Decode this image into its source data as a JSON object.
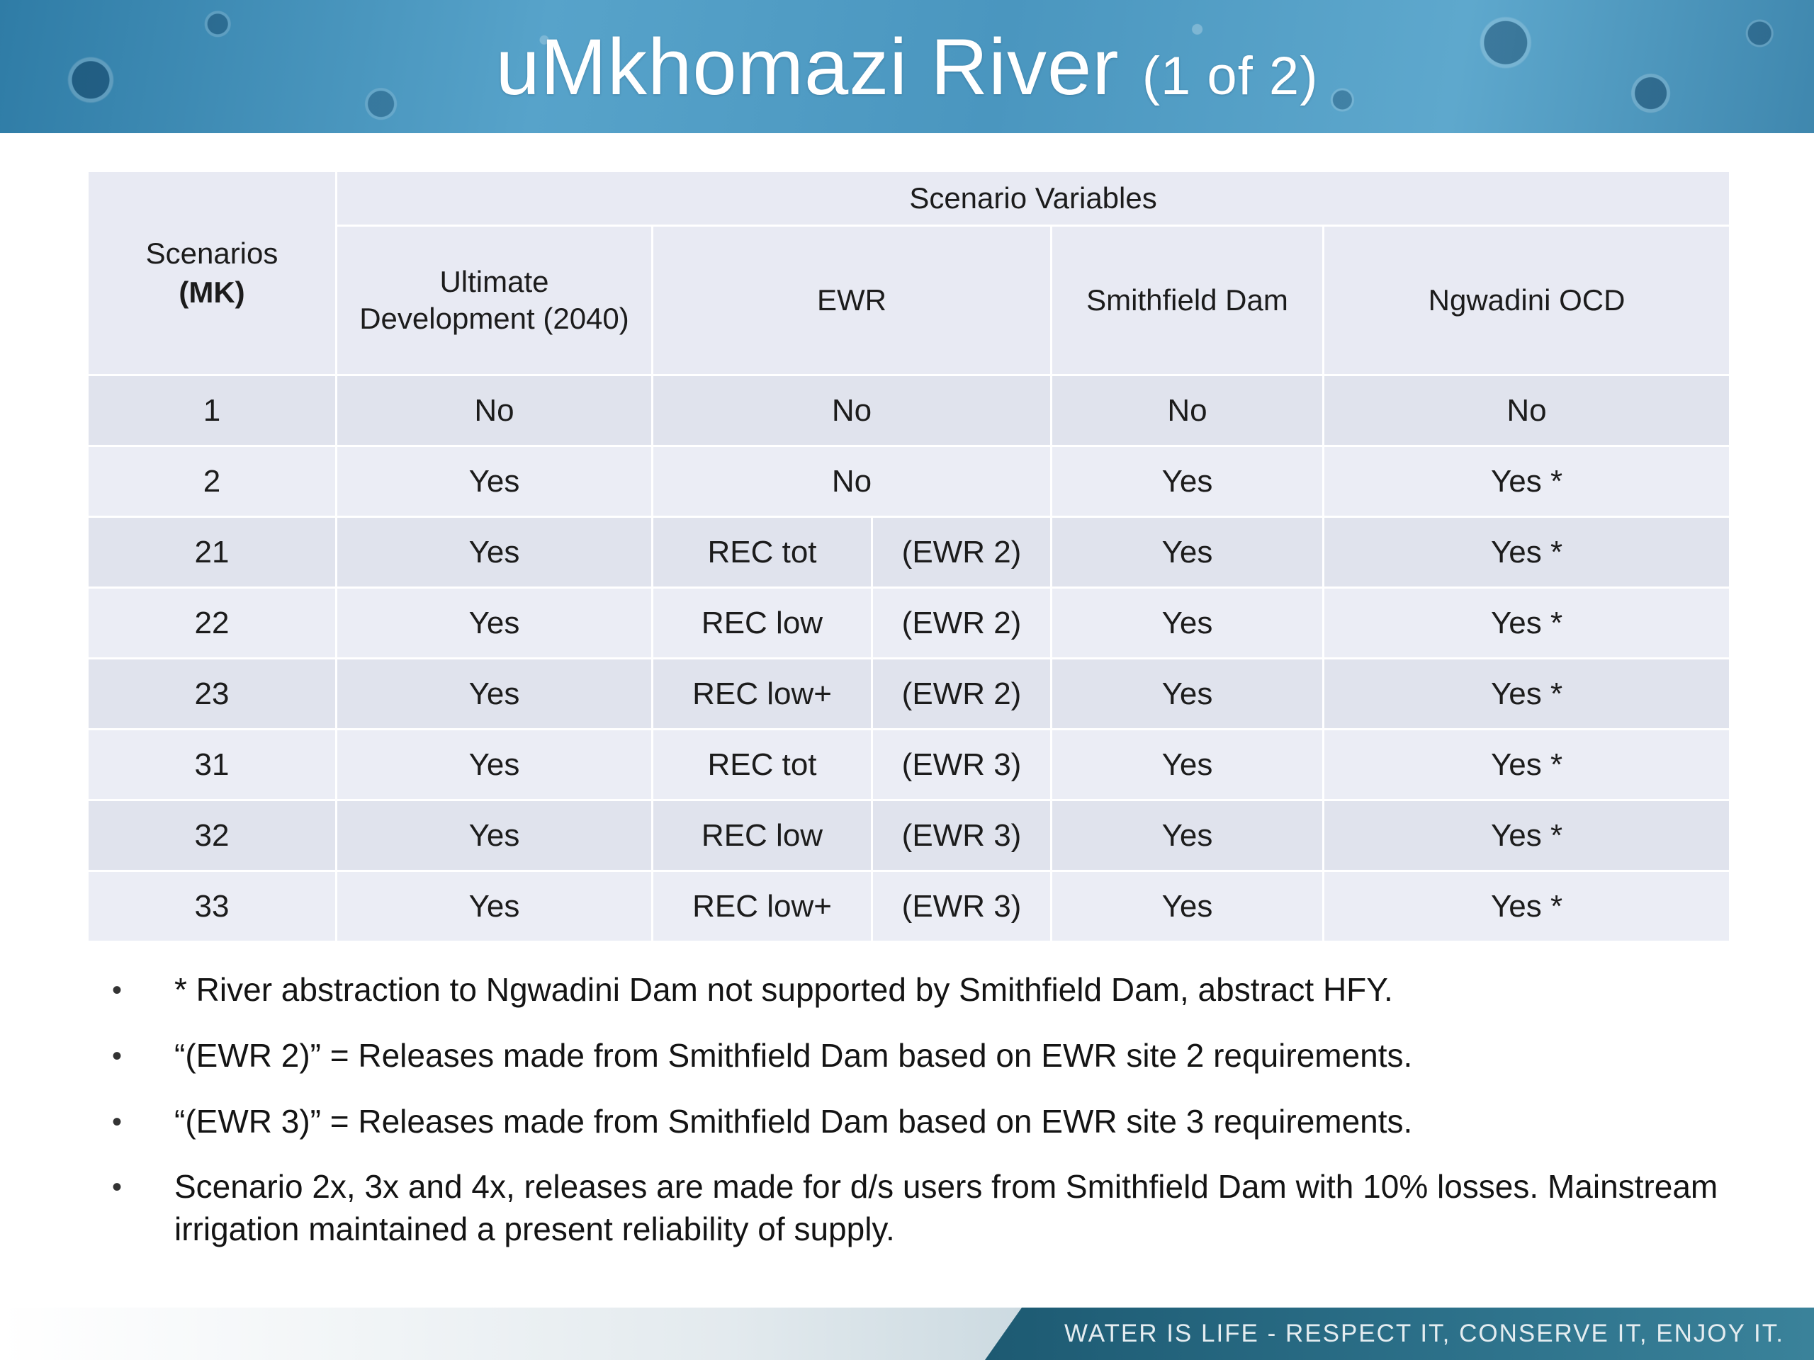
{
  "slide": {
    "title": "uMkhomazi River",
    "title_suffix": "(1 of 2)"
  },
  "table": {
    "corner": {
      "line1": "Scenarios",
      "line2": "(MK)"
    },
    "group_header": "Scenario Variables",
    "columns": {
      "ultimate": "Ultimate Development (2040)",
      "ewr": "EWR",
      "smithfield": "Smithfield Dam",
      "ngwadini": "Ngwadini OCD"
    },
    "rows": [
      {
        "id": "1",
        "ultimate": "No",
        "ewr": "No",
        "smithfield": "No",
        "ngwadini": "No"
      },
      {
        "id": "2",
        "ultimate": "Yes",
        "ewr": "No",
        "smithfield": "Yes",
        "ngwadini": "Yes *"
      },
      {
        "id": "21",
        "ultimate": "Yes",
        "ewr_rec": "REC tot",
        "ewr_site": "(EWR 2)",
        "smithfield": "Yes",
        "ngwadini": "Yes *"
      },
      {
        "id": "22",
        "ultimate": "Yes",
        "ewr_rec": "REC low",
        "ewr_site": "(EWR 2)",
        "smithfield": "Yes",
        "ngwadini": "Yes *"
      },
      {
        "id": "23",
        "ultimate": "Yes",
        "ewr_rec": "REC low+",
        "ewr_site": "(EWR 2)",
        "smithfield": "Yes",
        "ngwadini": "Yes *"
      },
      {
        "id": "31",
        "ultimate": "Yes",
        "ewr_rec": "REC tot",
        "ewr_site": "(EWR 3)",
        "smithfield": "Yes",
        "ngwadini": "Yes *"
      },
      {
        "id": "32",
        "ultimate": "Yes",
        "ewr_rec": "REC low",
        "ewr_site": "(EWR 3)",
        "smithfield": "Yes",
        "ngwadini": "Yes *"
      },
      {
        "id": "33",
        "ultimate": "Yes",
        "ewr_rec": "REC low+",
        "ewr_site": "(EWR 3)",
        "smithfield": "Yes",
        "ngwadini": "Yes *"
      }
    ]
  },
  "notes": [
    "*  River abstraction to Ngwadini Dam not supported by Smithfield Dam, abstract HFY.",
    "“(EWR 2)” = Releases made from Smithfield Dam based on EWR site 2 requirements.",
    "“(EWR 3)” = Releases made from Smithfield Dam based on EWR site 3 requirements.",
    "Scenario 2x, 3x and 4x, releases are made for d/s users from Smithfield Dam with 10% losses. Mainstream irrigation maintained a present reliability of supply."
  ],
  "footer": {
    "text": "WATER IS LIFE - RESPECT IT, CONSERVE IT, ENJOY IT."
  }
}
